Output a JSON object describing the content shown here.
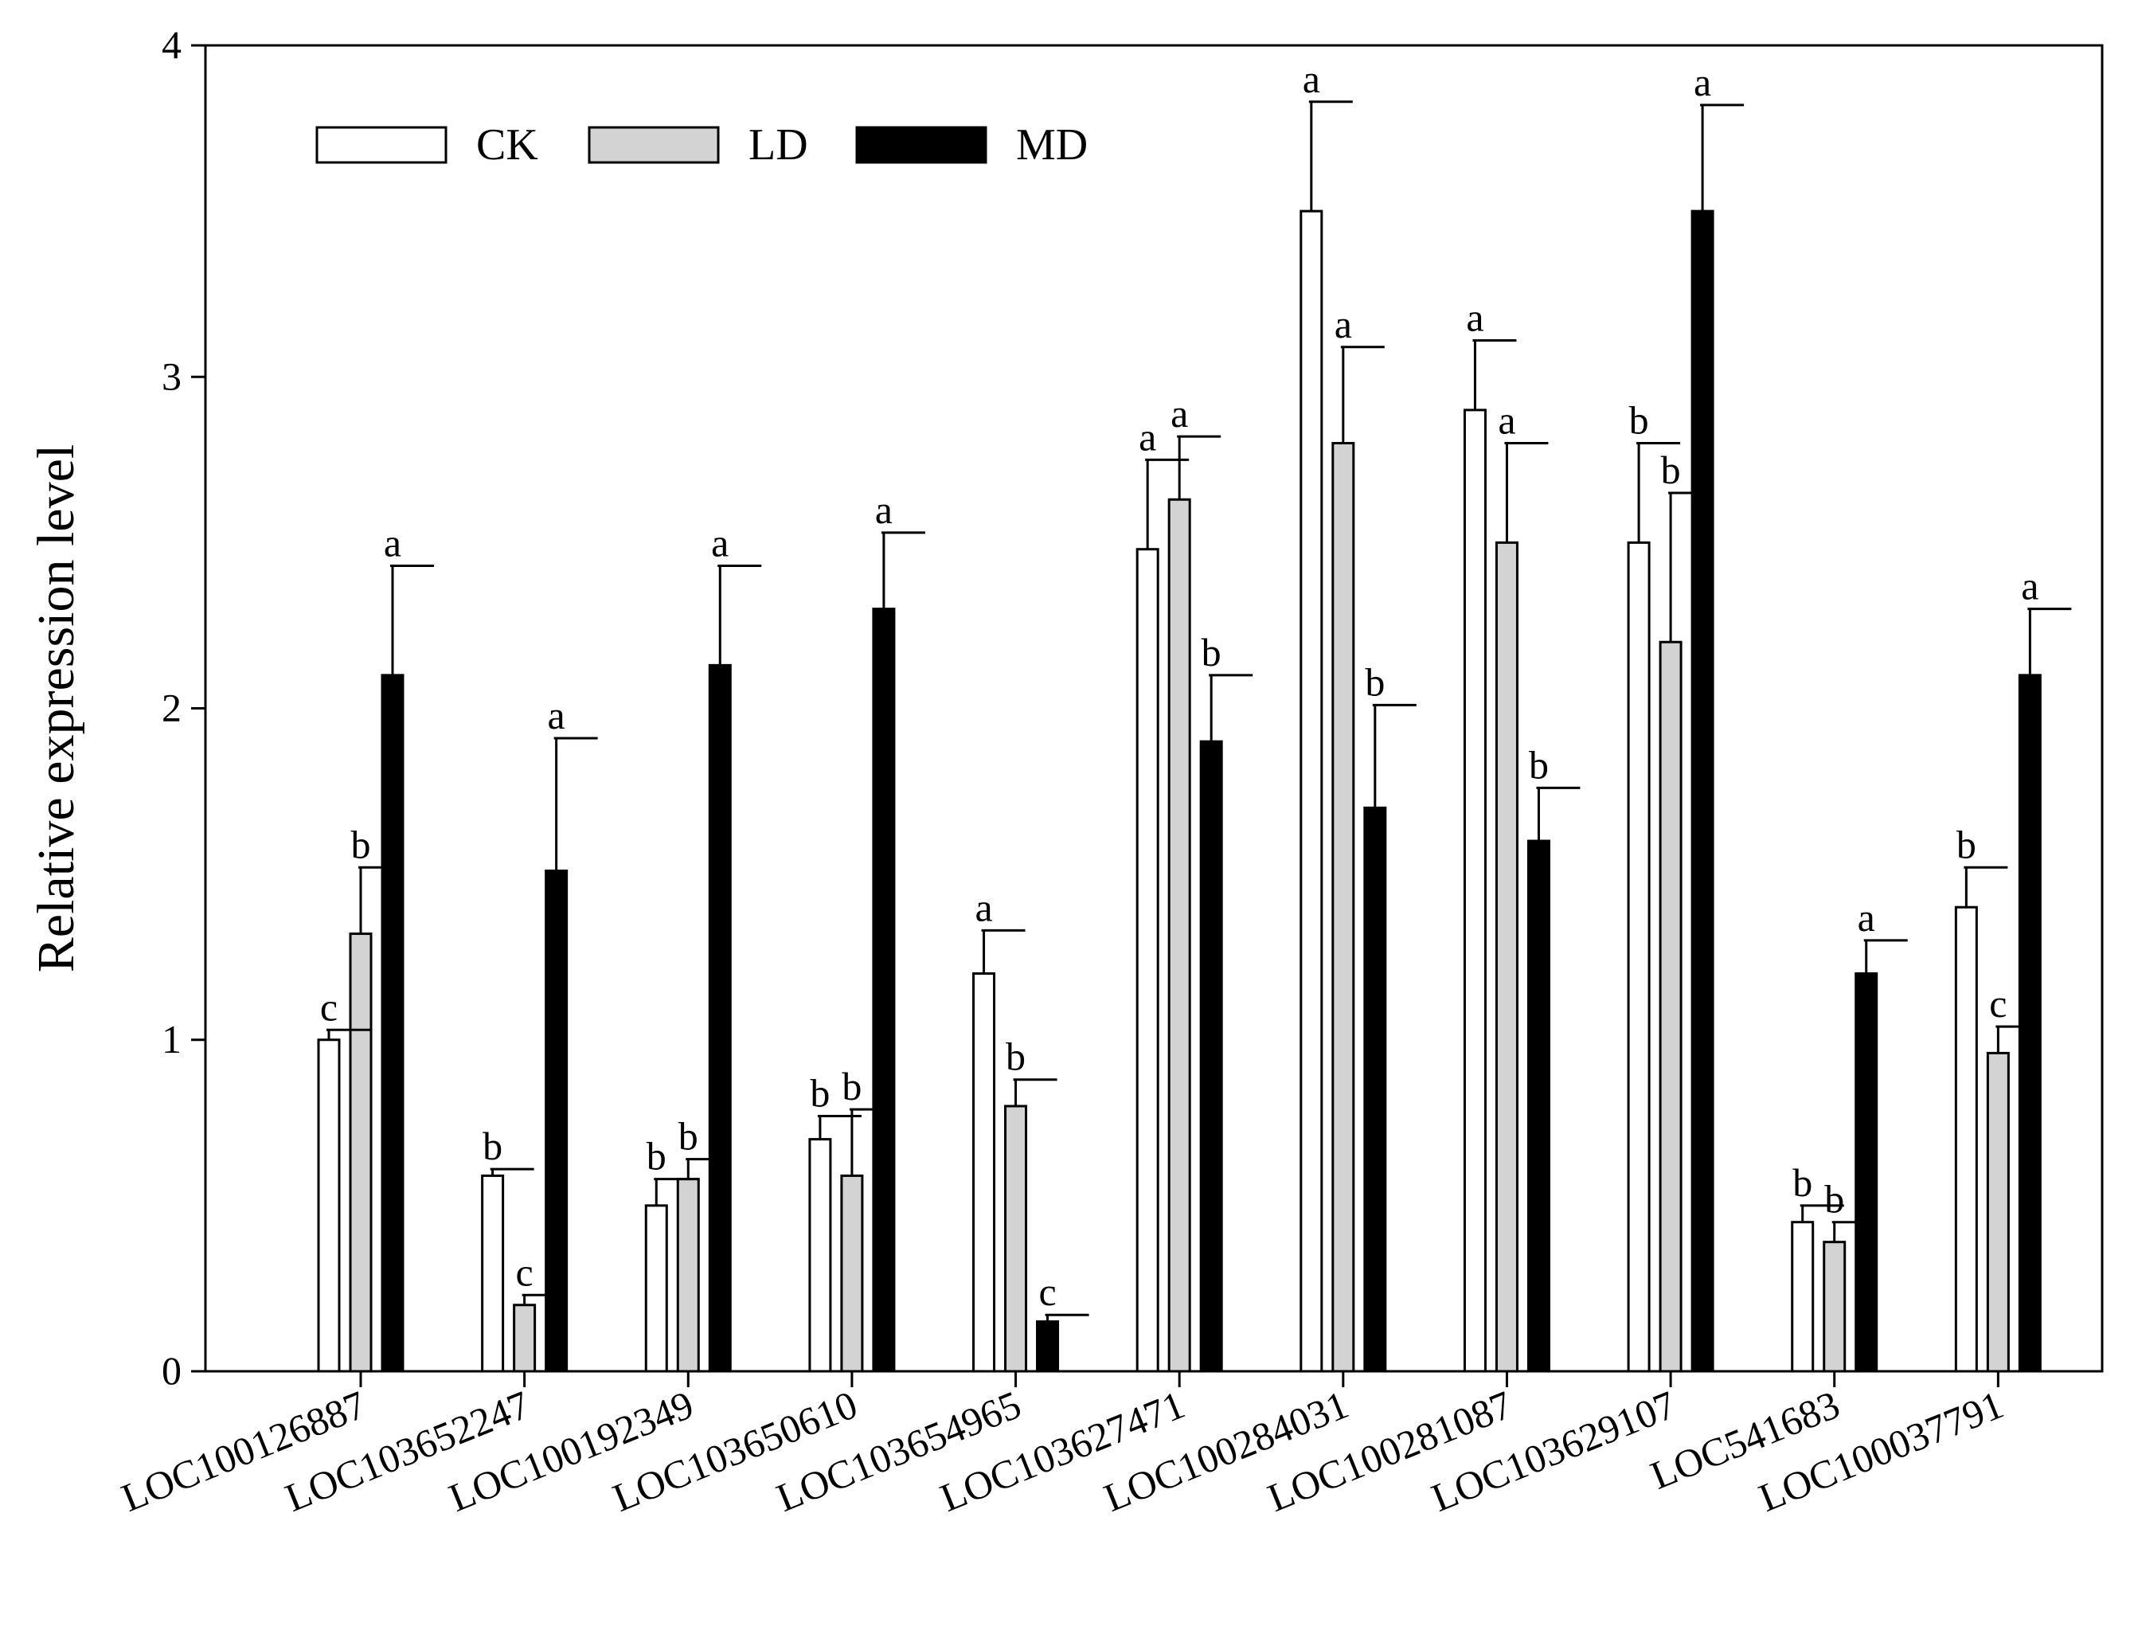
{
  "chart_data": {
    "type": "bar",
    "title": "",
    "xlabel": "",
    "ylabel": "Relative expression level",
    "ylim": [
      0,
      4
    ],
    "yticks": [
      "0",
      "1",
      "2",
      "3",
      "4"
    ],
    "grid": false,
    "legend_position": "top-left",
    "categories": [
      "LOC100126887",
      "LOC103652247",
      "LOC100192349",
      "LOC103650610",
      "LOC103654965",
      "LOC103627471",
      "LOC100284031",
      "LOC100281087",
      "LOC103629107",
      "LOC541683",
      "LOC100037791"
    ],
    "series": [
      {
        "name": "CK",
        "color": "#ffffff",
        "values": [
          1.0,
          0.59,
          0.5,
          0.7,
          1.2,
          2.48,
          3.5,
          2.9,
          2.5,
          0.45,
          1.4
        ],
        "errors": [
          0.03,
          0.02,
          0.08,
          0.07,
          0.13,
          0.27,
          0.33,
          0.21,
          0.3,
          0.05,
          0.12
        ],
        "letters": [
          "c",
          "b",
          "b",
          "b",
          "a",
          "a",
          "a",
          "a",
          "b",
          "b",
          "b"
        ]
      },
      {
        "name": "LD",
        "color": "#d3d3d3",
        "values": [
          1.32,
          0.2,
          0.58,
          0.59,
          0.8,
          2.63,
          2.8,
          2.5,
          2.2,
          0.39,
          0.96
        ],
        "errors": [
          0.2,
          0.03,
          0.06,
          0.2,
          0.08,
          0.19,
          0.29,
          0.3,
          0.45,
          0.06,
          0.08
        ],
        "letters": [
          "b",
          "c",
          "b",
          "b",
          "b",
          "a",
          "a",
          "a",
          "b",
          "b",
          "c"
        ]
      },
      {
        "name": "MD",
        "color": "#000000",
        "values": [
          2.1,
          1.51,
          2.13,
          2.3,
          0.15,
          1.9,
          1.7,
          1.6,
          3.5,
          1.2,
          2.1
        ],
        "errors": [
          0.33,
          0.4,
          0.3,
          0.23,
          0.02,
          0.2,
          0.31,
          0.16,
          0.32,
          0.1,
          0.2
        ],
        "letters": [
          "a",
          "a",
          "a",
          "a",
          "c",
          "b",
          "b",
          "b",
          "a",
          "a",
          "a"
        ]
      }
    ]
  }
}
